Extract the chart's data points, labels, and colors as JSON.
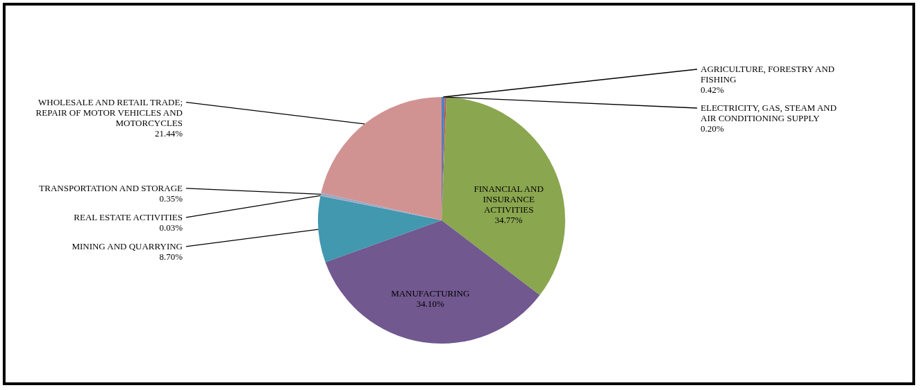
{
  "chart_data": {
    "type": "pie",
    "categories": [
      "AGRICULTURE, FORESTRY AND FISHING",
      "ELECTRICITY, GAS, STEAM AND AIR CONDITIONING SUPPLY",
      "FINANCIAL AND INSURANCE ACTIVITIES",
      "MANUFACTURING",
      "MINING AND QUARRYING",
      "REAL ESTATE ACTIVITIES",
      "TRANSPORTATION AND STORAGE",
      "WHOLESALE AND RETAIL TRADE; REPAIR OF MOTOR VEHICLES AND MOTORCYCLES"
    ],
    "values": [
      0.42,
      0.2,
      34.77,
      34.1,
      8.7,
      0.03,
      0.35,
      21.44
    ],
    "colors": [
      "#4f81bd",
      "#c0504d",
      "#8aa64f",
      "#71588f",
      "#4198af",
      "#db843d",
      "#93a9cf",
      "#d19392"
    ],
    "value_labels": [
      "0.42%",
      "0.20%",
      "34.77%",
      "34.10%",
      "8.70%",
      "0.03%",
      "0.35%",
      "21.44%"
    ],
    "legend": false
  }
}
